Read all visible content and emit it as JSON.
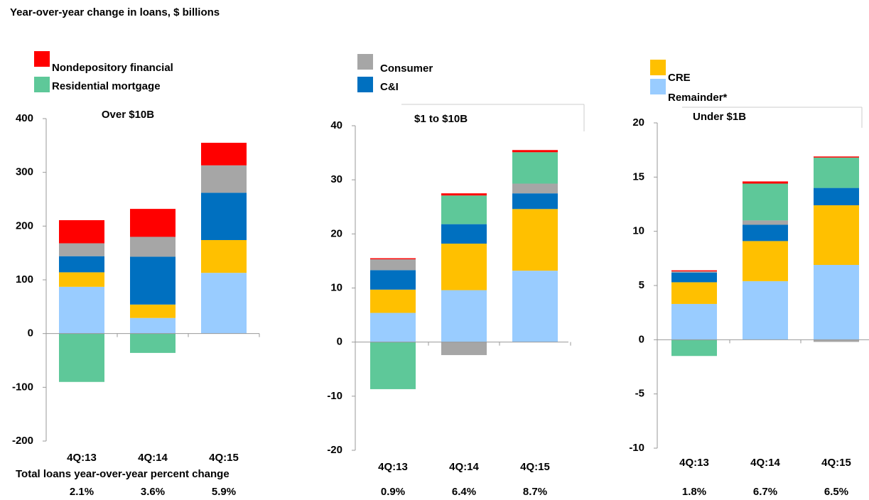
{
  "title": "Year-over-year change in loans, $ billions",
  "note": "Total loans year-over-year percent change",
  "legend": [
    {
      "name": "Remainder*",
      "color": "#99ccff"
    },
    {
      "name": "CRE",
      "color": "#ffc000"
    },
    {
      "name": "C&I",
      "color": "#0070c0"
    },
    {
      "name": "Consumer",
      "color": "#a6a6a6"
    },
    {
      "name": "Residential mortgage",
      "color": "#5ec899"
    },
    {
      "name": "Nondepository financial",
      "color": "#ff0000"
    }
  ],
  "chart_data": [
    {
      "type": "stacked_bar",
      "title": "Over $10B",
      "categories": [
        "4Q:13",
        "4Q:14",
        "4Q:15"
      ],
      "series": [
        {
          "values": [
            87,
            29,
            113
          ]
        },
        {
          "values": [
            27,
            25,
            61
          ]
        },
        {
          "values": [
            30,
            89,
            88
          ]
        },
        {
          "values": [
            24,
            37,
            51
          ]
        },
        {
          "values": [
            -90,
            -36,
            0
          ]
        },
        {
          "values": [
            43,
            52,
            42
          ]
        }
      ],
      "pct_change": [
        {
          "value": 2.1,
          "label": "2.1%"
        },
        {
          "value": 3.6,
          "label": "3.6%"
        },
        {
          "value": 5.9,
          "label": "5.9%"
        }
      ],
      "ylim": [
        -200,
        400
      ],
      "yticks": [
        -200,
        -100,
        0,
        100,
        200,
        300,
        400
      ]
    },
    {
      "type": "stacked_bar",
      "title": "$1 to $10B",
      "categories": [
        "4Q:13",
        "4Q:14",
        "4Q:15"
      ],
      "series": [
        {
          "values": [
            5.4,
            9.6,
            13.2
          ]
        },
        {
          "values": [
            4.3,
            8.6,
            11.4
          ]
        },
        {
          "values": [
            3.6,
            3.6,
            2.9
          ]
        },
        {
          "values": [
            2.0,
            -2.4,
            1.8
          ]
        },
        {
          "values": [
            -8.7,
            5.3,
            5.8
          ]
        },
        {
          "values": [
            0.2,
            0.4,
            0.4
          ]
        }
      ],
      "pct_change": [
        {
          "value": 0.9,
          "label": "0.9%"
        },
        {
          "value": 6.4,
          "label": "6.4%"
        },
        {
          "value": 8.7,
          "label": "8.7%"
        }
      ],
      "ylim": [
        -20,
        40
      ],
      "yticks": [
        -20,
        -10,
        0,
        10,
        20,
        30,
        40
      ]
    },
    {
      "type": "stacked_bar",
      "title": "Under $1B",
      "categories": [
        "4Q:13",
        "4Q:14",
        "4Q:15"
      ],
      "series": [
        {
          "values": [
            3.3,
            5.4,
            6.9
          ]
        },
        {
          "values": [
            2.0,
            3.7,
            5.5
          ]
        },
        {
          "values": [
            0.9,
            1.5,
            1.6
          ]
        },
        {
          "values": [
            0.1,
            0.4,
            -0.2
          ]
        },
        {
          "values": [
            -1.5,
            3.4,
            2.8
          ]
        },
        {
          "values": [
            0.1,
            0.2,
            0.1
          ]
        }
      ],
      "pct_change": [
        {
          "value": 1.8,
          "label": "1.8%"
        },
        {
          "value": 6.7,
          "label": "6.7%"
        },
        {
          "value": 6.5,
          "label": "6.5%"
        }
      ],
      "ylim": [
        -10,
        20
      ],
      "yticks": [
        -10,
        -5,
        0,
        5,
        10,
        15,
        20
      ]
    }
  ]
}
